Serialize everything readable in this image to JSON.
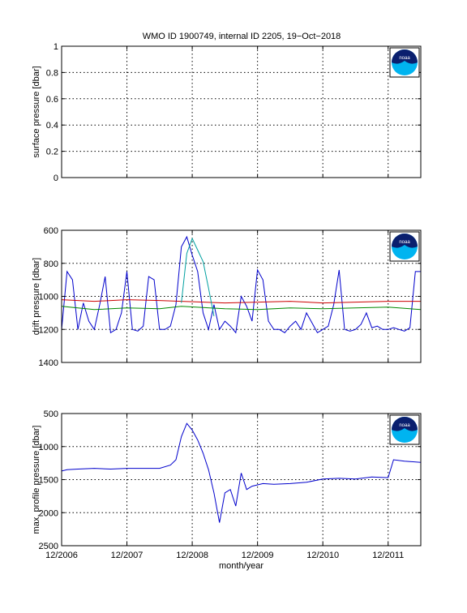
{
  "title": "WMO ID 1900749, internal ID 2205, 19−Oct−2018",
  "logo_text": "noaa",
  "colors": {
    "axes": "#000000",
    "grid": "#000000",
    "series_main": "#0000cc",
    "series_red": "#cc0000",
    "series_green": "#008800",
    "series_cyan": "#00a0a0",
    "logo_blue": "#0a1f6e",
    "logo_cyan": "#00b4f0"
  },
  "chart_data": [
    {
      "type": "line",
      "ylabel": "surface pressure [dbar]",
      "ylim": [
        0,
        1
      ],
      "yticks": [
        "0",
        "0.2",
        "0.4",
        "0.6",
        "0.8",
        "1"
      ],
      "ytick_values": [
        0,
        0.2,
        0.4,
        0.6,
        0.8,
        1
      ],
      "y_reversed": false,
      "x_date_range": [
        "2006-12",
        "2012-06"
      ],
      "grid": true,
      "series": []
    },
    {
      "type": "line",
      "ylabel": "drift pressure [dbar]",
      "ylim": [
        600,
        1400
      ],
      "yticks": [
        "600",
        "800",
        "1000",
        "1200",
        "1400"
      ],
      "ytick_values": [
        600,
        800,
        1000,
        1200,
        1400
      ],
      "y_reversed": true,
      "x_date_range": [
        "2006-12",
        "2012-06"
      ],
      "grid": true,
      "series": [
        {
          "color": "blue",
          "x": [
            "2006-12",
            "2007-01",
            "2007-02",
            "2007-03",
            "2007-04",
            "2007-05",
            "2007-06",
            "2007-07",
            "2007-08",
            "2007-09",
            "2007-10",
            "2007-11",
            "2007-12",
            "2008-01",
            "2008-02",
            "2008-03",
            "2008-04",
            "2008-05",
            "2008-06",
            "2008-07",
            "2008-08",
            "2008-09",
            "2008-10",
            "2008-11",
            "2008-12",
            "2009-01",
            "2009-02",
            "2009-03",
            "2009-04",
            "2009-05",
            "2009-06",
            "2009-07",
            "2009-08",
            "2009-09",
            "2009-10",
            "2009-11",
            "2009-12",
            "2010-01",
            "2010-02",
            "2010-03",
            "2010-04",
            "2010-05",
            "2010-06",
            "2010-07",
            "2010-08",
            "2010-09",
            "2010-10",
            "2010-11",
            "2010-12",
            "2011-01",
            "2011-02",
            "2011-03",
            "2011-04",
            "2011-05",
            "2011-06",
            "2011-07",
            "2011-08",
            "2011-09",
            "2011-10",
            "2011-11",
            "2011-12",
            "2012-01",
            "2012-02",
            "2012-03",
            "2012-04",
            "2012-05",
            "2012-06"
          ],
          "y": [
            1200,
            850,
            900,
            1200,
            1040,
            1150,
            1200,
            1050,
            880,
            1220,
            1200,
            1100,
            850,
            1200,
            1210,
            1180,
            880,
            900,
            1200,
            1200,
            1180,
            1050,
            700,
            640,
            750,
            850,
            1100,
            1200,
            1050,
            1200,
            1150,
            1180,
            1220,
            1000,
            1060,
            1150,
            840,
            900,
            1150,
            1200,
            1200,
            1220,
            1180,
            1150,
            1200,
            1100,
            1160,
            1220,
            1200,
            1180,
            1050,
            840,
            1200,
            1210,
            1200,
            1170,
            1100,
            1190,
            1180,
            1200,
            1200,
            1190,
            1200,
            1210,
            1190,
            850,
            850
          ]
        },
        {
          "color": "red",
          "x": [
            "2006-12",
            "2007-06",
            "2007-12",
            "2008-06",
            "2008-10",
            "2009-06",
            "2009-12",
            "2010-06",
            "2010-12",
            "2011-06",
            "2011-12",
            "2012-06"
          ],
          "y": [
            1020,
            1030,
            1020,
            1025,
            1030,
            1040,
            1035,
            1030,
            1040,
            1035,
            1030,
            1030
          ]
        },
        {
          "color": "green",
          "x": [
            "2006-12",
            "2007-06",
            "2007-12",
            "2008-06",
            "2008-10",
            "2009-06",
            "2009-12",
            "2010-06",
            "2010-12",
            "2011-06",
            "2011-12",
            "2012-06"
          ],
          "y": [
            1060,
            1080,
            1070,
            1075,
            1060,
            1075,
            1080,
            1070,
            1075,
            1070,
            1065,
            1080
          ]
        },
        {
          "color": "cyan",
          "x": [
            "2008-10",
            "2008-11",
            "2008-12",
            "2009-01",
            "2009-02",
            "2009-03",
            "2009-04"
          ],
          "y": [
            1040,
            740,
            650,
            720,
            790,
            950,
            1120
          ]
        }
      ]
    },
    {
      "type": "line",
      "ylabel": "max. profile pressure [dbar]",
      "xlabel": "month/year",
      "ylim": [
        500,
        2500
      ],
      "yticks": [
        "500",
        "1000",
        "1500",
        "2000",
        "2500"
      ],
      "ytick_values": [
        500,
        1000,
        1500,
        2000,
        2500
      ],
      "y_reversed": true,
      "x_date_range": [
        "2006-12",
        "2012-06"
      ],
      "xticks": [
        "12/2006",
        "12/2007",
        "12/2008",
        "12/2009",
        "12/2010",
        "12/2011"
      ],
      "xtick_values": [
        "2006-12",
        "2007-12",
        "2008-12",
        "2009-12",
        "2010-12",
        "2011-12"
      ],
      "grid": true,
      "series": [
        {
          "color": "blue",
          "x": [
            "2006-12",
            "2007-01",
            "2007-03",
            "2007-06",
            "2007-09",
            "2007-12",
            "2008-03",
            "2008-06",
            "2008-08",
            "2008-09",
            "2008-10",
            "2008-11",
            "2008-12",
            "2009-01",
            "2009-02",
            "2009-03",
            "2009-04",
            "2009-05",
            "2009-06",
            "2009-07",
            "2009-08",
            "2009-09",
            "2009-10",
            "2009-11",
            "2009-12",
            "2010-01",
            "2010-03",
            "2010-06",
            "2010-09",
            "2010-12",
            "2011-03",
            "2011-06",
            "2011-09",
            "2011-12",
            "2012-01",
            "2012-03",
            "2012-06"
          ],
          "y": [
            1370,
            1350,
            1340,
            1330,
            1340,
            1330,
            1330,
            1330,
            1280,
            1200,
            850,
            650,
            750,
            900,
            1100,
            1350,
            1700,
            2150,
            1700,
            1650,
            1900,
            1400,
            1650,
            1600,
            1580,
            1560,
            1570,
            1560,
            1540,
            1490,
            1480,
            1490,
            1460,
            1470,
            1200,
            1220,
            1240
          ]
        }
      ]
    }
  ]
}
